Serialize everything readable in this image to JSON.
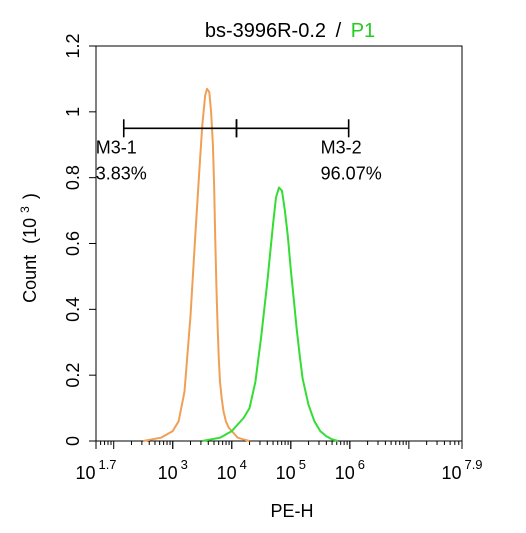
{
  "title": {
    "sample": "bs-3996R-0.2",
    "separator": "/",
    "gate": "P1",
    "gate_color": "#22cc22"
  },
  "chart_data": {
    "type": "line",
    "xlabel": "PE-H",
    "ylabel": "Count",
    "ylabel_scale": {
      "open": "(10",
      "exp": "3",
      "close": ")"
    },
    "x_scale": "log",
    "xlim_exp": [
      1.7,
      7.9
    ],
    "ylim": [
      0,
      1.2
    ],
    "x_ticks": [
      {
        "exp": 1.7,
        "base": "10",
        "label": "1.7"
      },
      {
        "exp": 3,
        "base": "10",
        "label": "3"
      },
      {
        "exp": 4,
        "base": "10",
        "label": "4"
      },
      {
        "exp": 5,
        "base": "10",
        "label": "5"
      },
      {
        "exp": 6,
        "base": "10",
        "label": "6"
      },
      {
        "exp": 7.9,
        "base": "10",
        "label": "7.9"
      }
    ],
    "y_ticks": [
      {
        "value": 0,
        "label": "0"
      },
      {
        "value": 0.2,
        "label": "0.2"
      },
      {
        "value": 0.4,
        "label": "0.4"
      },
      {
        "value": 0.6,
        "label": "0.6"
      },
      {
        "value": 0.8,
        "label": "0.8"
      },
      {
        "value": 1,
        "label": "1"
      },
      {
        "value": 1.2,
        "label": "1.2"
      }
    ],
    "series": [
      {
        "color": "#f0a055",
        "log_x": [
          2.5,
          2.8,
          3.0,
          3.1,
          3.2,
          3.3,
          3.38,
          3.45,
          3.5,
          3.55,
          3.58,
          3.62,
          3.65,
          3.68,
          3.7,
          3.72,
          3.74,
          3.76,
          3.78,
          3.8,
          3.83,
          3.86,
          3.9,
          3.95,
          4.0,
          4.05,
          4.1,
          4.2,
          4.3
        ],
        "y": [
          0.0,
          0.01,
          0.03,
          0.06,
          0.15,
          0.38,
          0.62,
          0.82,
          0.96,
          1.05,
          1.07,
          1.06,
          1.0,
          0.9,
          0.78,
          0.62,
          0.47,
          0.35,
          0.25,
          0.18,
          0.13,
          0.09,
          0.06,
          0.04,
          0.03,
          0.02,
          0.01,
          0.005,
          0.0
        ]
      },
      {
        "color": "#33dd33",
        "log_x": [
          3.5,
          3.8,
          4.0,
          4.1,
          4.2,
          4.3,
          4.4,
          4.5,
          4.6,
          4.7,
          4.75,
          4.8,
          4.85,
          4.9,
          4.95,
          5.0,
          5.05,
          5.1,
          5.15,
          5.2,
          5.3,
          5.4,
          5.5,
          5.6,
          5.7,
          5.8
        ],
        "y": [
          0.0,
          0.01,
          0.03,
          0.05,
          0.07,
          0.1,
          0.18,
          0.32,
          0.48,
          0.66,
          0.74,
          0.77,
          0.76,
          0.7,
          0.62,
          0.52,
          0.43,
          0.34,
          0.26,
          0.19,
          0.11,
          0.06,
          0.03,
          0.015,
          0.005,
          0.0
        ]
      }
    ],
    "markers": [
      {
        "name": "M3-1",
        "percent": "3.83%",
        "start_exp": 2.17,
        "end_exp": 4.08
      },
      {
        "name": "M3-2",
        "percent": "96.07%",
        "start_exp": 4.08,
        "end_exp": 5.98
      }
    ],
    "marker_y": 0.95
  }
}
